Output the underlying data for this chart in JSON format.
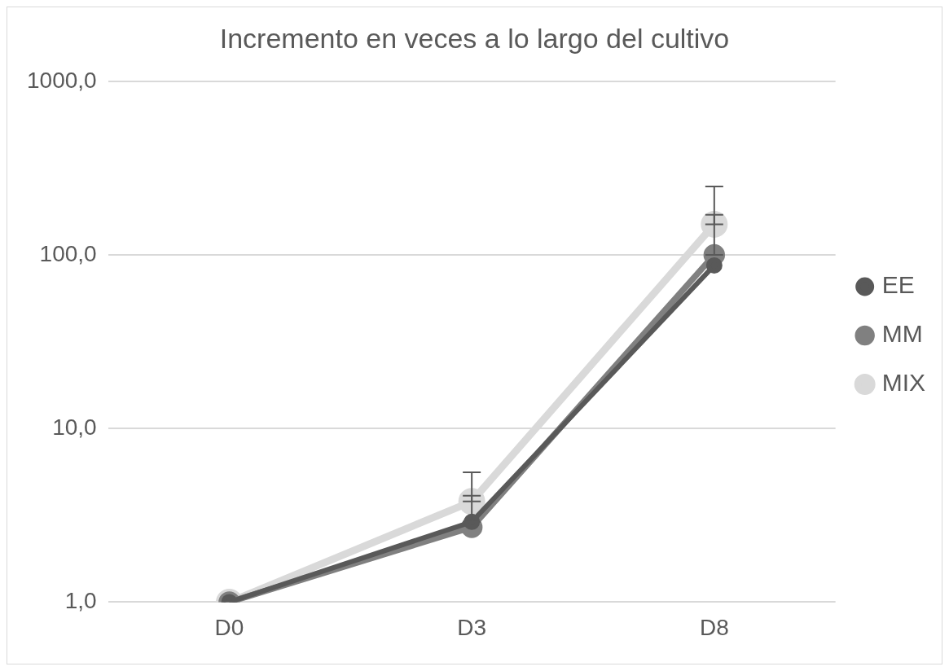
{
  "chart_data": {
    "type": "line",
    "title": "Incremento en veces a lo largo del cultivo",
    "categories": [
      "D0",
      "D3",
      "D8"
    ],
    "series": [
      {
        "name": "EE",
        "color": "#595959",
        "values": [
          1,
          2.9,
          87
        ],
        "errors": [
          null,
          [
            2.9,
            4.1
          ],
          null
        ]
      },
      {
        "name": "MM",
        "color": "#808080",
        "values": [
          1,
          2.7,
          100
        ],
        "errors": [
          null,
          null,
          [
            100,
            170
          ]
        ]
      },
      {
        "name": "MIX",
        "color": "#d9d9d9",
        "values": [
          1,
          3.8,
          150
        ],
        "errors": [
          null,
          [
            3.8,
            5.6
          ],
          [
            150,
            248
          ]
        ]
      }
    ],
    "log": "y",
    "ylim": [
      1,
      1000
    ],
    "yticks": [
      {
        "value": 1,
        "label": "1,0"
      },
      {
        "value": 10,
        "label": "10,0"
      },
      {
        "value": 100,
        "label": "100,0"
      },
      {
        "value": 1000,
        "label": "1000,0"
      }
    ],
    "grid": "y",
    "legend": "right",
    "marker": "circle",
    "line_style": "solid"
  }
}
